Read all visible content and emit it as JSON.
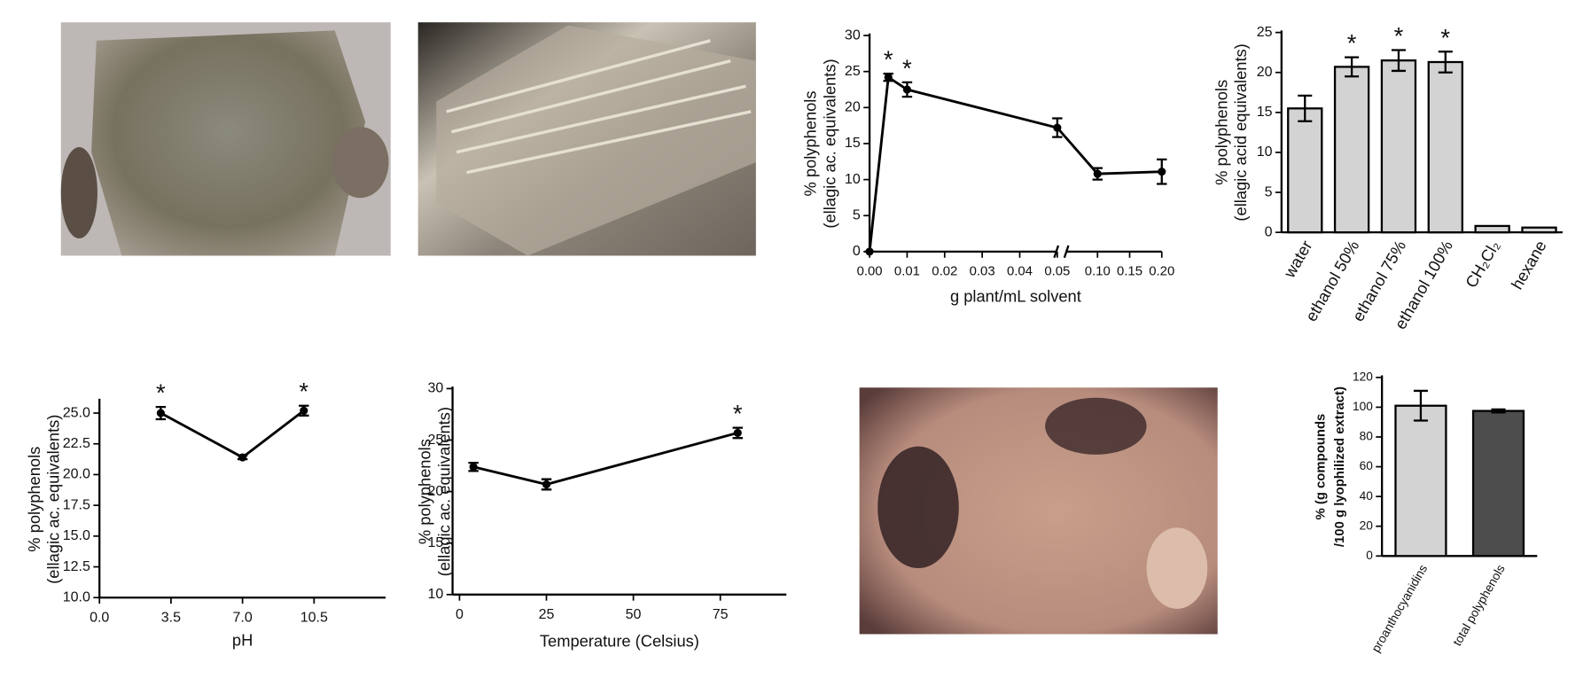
{
  "chart_data": [
    {
      "type": "line",
      "ylabel": [
        "% polyphenols",
        "(ellagic ac. equivalents)"
      ],
      "xlabel": "g plant/mL solvent",
      "x": [
        0,
        0.005,
        0.01,
        0.05,
        0.1,
        0.2
      ],
      "values": [
        0,
        24.2,
        22.5,
        17.2,
        10.8,
        11.1
      ],
      "errors": [
        0,
        0.5,
        1.0,
        1.3,
        0.8,
        1.7
      ],
      "significant": [
        false,
        true,
        true,
        false,
        false,
        false
      ],
      "significance_mark": "*",
      "xlim": [
        0,
        0.2
      ],
      "broken_axis_at": 0.05,
      "xticks": [
        {
          "value": 0,
          "label": "0.00"
        },
        {
          "value": 0.01,
          "label": "0.01"
        },
        {
          "value": 0.02,
          "label": "0.02"
        },
        {
          "value": 0.03,
          "label": "0.03"
        },
        {
          "value": 0.04,
          "label": "0.04"
        },
        {
          "value": 0.05,
          "label": "0.05"
        },
        {
          "value": 0.1,
          "label": "0.10"
        },
        {
          "value": 0.15,
          "label": "0.15"
        },
        {
          "value": 0.2,
          "label": "0.20"
        }
      ],
      "ylim": [
        0,
        30
      ],
      "yticks": [
        0,
        5,
        10,
        15,
        20,
        25,
        30
      ],
      "color": "#000000"
    },
    {
      "type": "bar",
      "ylabel": [
        "% polyphenols",
        "(ellagic acid equivalents)"
      ],
      "categories": [
        "water",
        "ethanol 50%",
        "ethanol 75%",
        "ethanol 100%",
        "CH₂Cl₂",
        "hexane"
      ],
      "values": [
        15.5,
        20.7,
        21.5,
        21.3,
        0.8,
        0.6
      ],
      "errors": [
        1.6,
        1.2,
        1.3,
        1.3,
        0,
        0
      ],
      "significant": [
        false,
        true,
        true,
        true,
        false,
        false
      ],
      "significance_mark": "*",
      "ylim": [
        0,
        25
      ],
      "yticks": [
        0,
        5,
        10,
        15,
        20,
        25
      ],
      "colors": [
        "#d3d3d3",
        "#d3d3d3",
        "#d3d3d3",
        "#d3d3d3",
        "#d3d3d3",
        "#d3d3d3"
      ]
    },
    {
      "type": "line",
      "ylabel": [
        "% polyphenols",
        "(ellagic ac. equivalents)"
      ],
      "xlabel": "pH",
      "x": [
        3,
        7,
        10
      ],
      "values": [
        25.0,
        21.4,
        25.2
      ],
      "errors": [
        0.5,
        0.15,
        0.4
      ],
      "significant": [
        true,
        false,
        true
      ],
      "significance_mark": "*",
      "xlim": [
        0,
        14
      ],
      "xticks": [
        {
          "value": 0,
          "label": "0.0"
        },
        {
          "value": 3.5,
          "label": "3.5"
        },
        {
          "value": 7,
          "label": "7.0"
        },
        {
          "value": 10.5,
          "label": "10.5"
        }
      ],
      "ylim": [
        10,
        26
      ],
      "yticks": [
        {
          "value": 10,
          "label": "10.0"
        },
        {
          "value": 12.5,
          "label": "12.5"
        },
        {
          "value": 15,
          "label": "15.0"
        },
        {
          "value": 17.5,
          "label": "17.5"
        },
        {
          "value": 20,
          "label": "20.0"
        },
        {
          "value": 22.5,
          "label": "22.5"
        },
        {
          "value": 25,
          "label": "25.0"
        }
      ],
      "color": "#000000"
    },
    {
      "type": "line",
      "ylabel": [
        "% polyphenols",
        "(ellagic ac. equivalents)"
      ],
      "xlabel": "Temperature (Celsius)",
      "x": [
        4,
        25,
        80
      ],
      "values": [
        22.4,
        20.7,
        25.7
      ],
      "errors": [
        0.4,
        0.5,
        0.5
      ],
      "significant": [
        false,
        false,
        true
      ],
      "significance_mark": "*",
      "xlim": [
        -2,
        94
      ],
      "xticks": [
        0,
        25,
        50,
        75
      ],
      "ylim": [
        10,
        30
      ],
      "yticks": [
        10,
        15,
        20,
        25,
        30
      ],
      "color": "#000000"
    },
    {
      "type": "bar",
      "ylabel": [
        "% (g compounds",
        "/100 g lyophilized extract)"
      ],
      "categories": [
        "proanthocyanidins",
        "total polyphenols"
      ],
      "values": [
        101,
        97.5
      ],
      "errors": [
        10,
        1
      ],
      "ylim": [
        0,
        120
      ],
      "yticks": [
        0,
        20,
        40,
        60,
        80,
        100,
        120
      ],
      "colors": [
        "#d3d3d3",
        "#4d4d4d"
      ]
    }
  ]
}
